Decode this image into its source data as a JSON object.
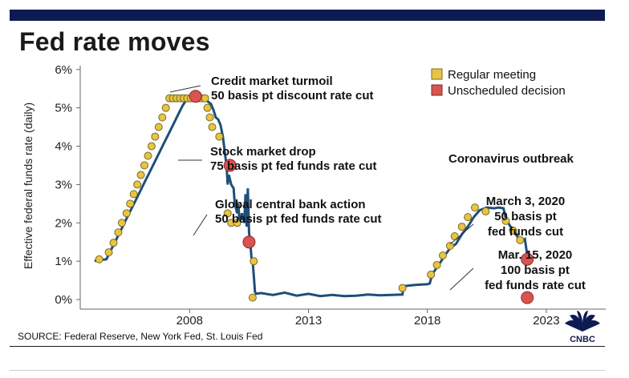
{
  "header": {
    "title": "Fed rate moves"
  },
  "footer": {
    "source": "SOURCE: Federal Reserve, New York Fed, St. Louis Fed",
    "logo_text": "CNBC"
  },
  "colors": {
    "topbar": "#0d1b52",
    "line": "#1f4e79",
    "regular": "#e8c443",
    "unscheduled": "#d9534f",
    "marker_stroke": "#7a6a2a"
  },
  "chart_data": {
    "type": "line",
    "title": "Fed rate moves",
    "ylabel": "Effective federal funds rate (daily)",
    "xlabel": "",
    "xlim": [
      2003.4,
      2025.5
    ],
    "ylim": [
      -0.25,
      6.1
    ],
    "x_ticks": [
      2008,
      2013,
      2018,
      2023
    ],
    "x_tick_labels": [
      "2008",
      "2013",
      "2018",
      "2023"
    ],
    "y_ticks": [
      0,
      1,
      2,
      3,
      4,
      5,
      6
    ],
    "y_tick_labels": [
      "0%",
      "1%",
      "2%",
      "3%",
      "4%",
      "5%",
      "6%"
    ],
    "grid": false,
    "legend": {
      "placement": "top-right",
      "entries": [
        {
          "label": "Regular meeting",
          "color": "#e8c443"
        },
        {
          "label": "Unscheduled decision",
          "color": "#d9534f"
        }
      ]
    },
    "series": [
      {
        "values": [
          [
            2004.0,
            1.01
          ],
          [
            2004.5,
            1.05
          ],
          [
            2004.7,
            1.3
          ],
          [
            2004.9,
            1.55
          ],
          [
            2005.1,
            1.8
          ],
          [
            2005.3,
            2.05
          ],
          [
            2005.5,
            2.3
          ],
          [
            2005.7,
            2.55
          ],
          [
            2005.9,
            2.8
          ],
          [
            2006.1,
            3.05
          ],
          [
            2006.3,
            3.3
          ],
          [
            2006.5,
            3.55
          ],
          [
            2006.7,
            3.8
          ],
          [
            2006.9,
            4.05
          ],
          [
            2007.1,
            4.3
          ],
          [
            2007.3,
            4.55
          ],
          [
            2007.5,
            4.8
          ],
          [
            2007.7,
            5.05
          ],
          [
            2007.9,
            5.25
          ],
          [
            2008.05,
            5.25
          ],
          [
            2008.25,
            5.35
          ],
          [
            2008.4,
            5.2
          ],
          [
            2008.5,
            5.28
          ],
          [
            2008.6,
            5.25
          ],
          [
            2008.9,
            5.1
          ],
          [
            2009.0,
            4.95
          ],
          [
            2009.1,
            4.75
          ],
          [
            2009.2,
            4.7
          ],
          [
            2009.3,
            4.55
          ],
          [
            2009.4,
            4.25
          ],
          [
            2009.45,
            4.0
          ],
          [
            2009.55,
            3.5
          ],
          [
            2009.6,
            3.0
          ],
          [
            2009.65,
            3.25
          ],
          [
            2009.75,
            3.0
          ],
          [
            2009.85,
            2.9
          ],
          [
            2009.9,
            2.5
          ],
          [
            2010.0,
            2.25
          ],
          [
            2010.05,
            2.5
          ],
          [
            2010.1,
            2.0
          ],
          [
            2010.2,
            2.25
          ],
          [
            2010.3,
            2.0
          ],
          [
            2010.35,
            2.75
          ],
          [
            2010.4,
            1.9
          ],
          [
            2010.45,
            2.9
          ],
          [
            2010.5,
            1.75
          ],
          [
            2010.55,
            1.5
          ],
          [
            2010.6,
            1.1
          ],
          [
            2010.65,
            1.0
          ],
          [
            2010.7,
            0.6
          ],
          [
            2010.75,
            0.2
          ],
          [
            2010.8,
            0.15
          ],
          [
            2011.0,
            0.17
          ],
          [
            2011.5,
            0.12
          ],
          [
            2012.0,
            0.18
          ],
          [
            2012.5,
            0.1
          ],
          [
            2013.0,
            0.15
          ],
          [
            2013.5,
            0.09
          ],
          [
            2014.0,
            0.12
          ],
          [
            2014.5,
            0.09
          ],
          [
            2015.0,
            0.1
          ],
          [
            2015.5,
            0.13
          ],
          [
            2016.0,
            0.11
          ],
          [
            2016.5,
            0.12
          ],
          [
            2016.95,
            0.13
          ],
          [
            2017.0,
            0.35
          ],
          [
            2017.5,
            0.38
          ],
          [
            2018.0,
            0.4
          ],
          [
            2018.1,
            0.42
          ],
          [
            2018.2,
            0.66
          ],
          [
            2018.45,
            0.88
          ],
          [
            2018.7,
            1.12
          ],
          [
            2018.95,
            1.34
          ],
          [
            2019.2,
            1.45
          ],
          [
            2019.45,
            1.7
          ],
          [
            2019.7,
            1.9
          ],
          [
            2019.95,
            2.15
          ],
          [
            2020.2,
            2.33
          ],
          [
            2020.5,
            2.4
          ],
          [
            2020.8,
            2.38
          ],
          [
            2021.0,
            2.4
          ],
          [
            2021.2,
            2.38
          ],
          [
            2021.3,
            2.1
          ],
          [
            2021.5,
            1.9
          ],
          [
            2021.7,
            1.75
          ],
          [
            2021.85,
            1.55
          ],
          [
            2022.0,
            1.55
          ],
          [
            2022.1,
            1.58
          ],
          [
            2022.2,
            1.15
          ]
        ]
      }
    ],
    "regular_meetings": [
      [
        2004.2,
        1.05
      ],
      [
        2004.6,
        1.23
      ],
      [
        2004.8,
        1.48
      ],
      [
        2005.0,
        1.75
      ],
      [
        2005.15,
        2.0
      ],
      [
        2005.35,
        2.25
      ],
      [
        2005.5,
        2.5
      ],
      [
        2005.65,
        2.75
      ],
      [
        2005.8,
        3.0
      ],
      [
        2005.95,
        3.25
      ],
      [
        2006.1,
        3.5
      ],
      [
        2006.25,
        3.75
      ],
      [
        2006.4,
        4.0
      ],
      [
        2006.55,
        4.25
      ],
      [
        2006.7,
        4.5
      ],
      [
        2006.85,
        4.75
      ],
      [
        2007.0,
        5.0
      ],
      [
        2007.15,
        5.25
      ],
      [
        2007.3,
        5.25
      ],
      [
        2007.45,
        5.25
      ],
      [
        2007.6,
        5.25
      ],
      [
        2007.75,
        5.25
      ],
      [
        2007.9,
        5.25
      ],
      [
        2008.05,
        5.25
      ],
      [
        2008.2,
        5.25
      ],
      [
        2008.35,
        5.25
      ],
      [
        2008.5,
        5.25
      ],
      [
        2008.65,
        5.25
      ],
      [
        2008.75,
        5.0
      ],
      [
        2008.85,
        4.75
      ],
      [
        2008.95,
        4.5
      ],
      [
        2009.25,
        4.25
      ],
      [
        2009.6,
        2.25
      ],
      [
        2009.75,
        2.0
      ],
      [
        2010.0,
        2.0
      ],
      [
        2010.7,
        1.0
      ],
      [
        2010.65,
        0.05
      ],
      [
        2016.95,
        0.3
      ],
      [
        2018.15,
        0.65
      ],
      [
        2018.4,
        0.9
      ],
      [
        2018.65,
        1.15
      ],
      [
        2018.95,
        1.4
      ],
      [
        2019.15,
        1.65
      ],
      [
        2019.45,
        1.9
      ],
      [
        2019.7,
        2.15
      ],
      [
        2020.0,
        2.4
      ],
      [
        2020.45,
        2.3
      ],
      [
        2021.3,
        2.05
      ],
      [
        2021.6,
        1.8
      ],
      [
        2021.9,
        1.55
      ]
    ],
    "unscheduled_decisions": [
      [
        2008.25,
        5.3
      ],
      [
        2009.7,
        3.5
      ],
      [
        2010.5,
        1.5
      ],
      [
        2022.2,
        1.05
      ],
      [
        2022.2,
        0.05
      ]
    ],
    "annotations": [
      {
        "lines": [
          "Credit market turmoil",
          "50 basis pt discount rate cut"
        ]
      },
      {
        "lines": [
          "Stock market drop",
          "75 basis pt fed funds rate cut"
        ]
      },
      {
        "lines": [
          "Global central bank action",
          "50 basis pt fed funds rate cut"
        ]
      },
      {
        "lines": [
          "Coronavirus outbreak"
        ]
      },
      {
        "lines": [
          "March 3, 2020",
          "50 basis pt",
          "fed funds cut"
        ]
      },
      {
        "lines": [
          "Mar. 15, 2020",
          "100 basis pt",
          "fed funds rate cut"
        ]
      }
    ]
  }
}
